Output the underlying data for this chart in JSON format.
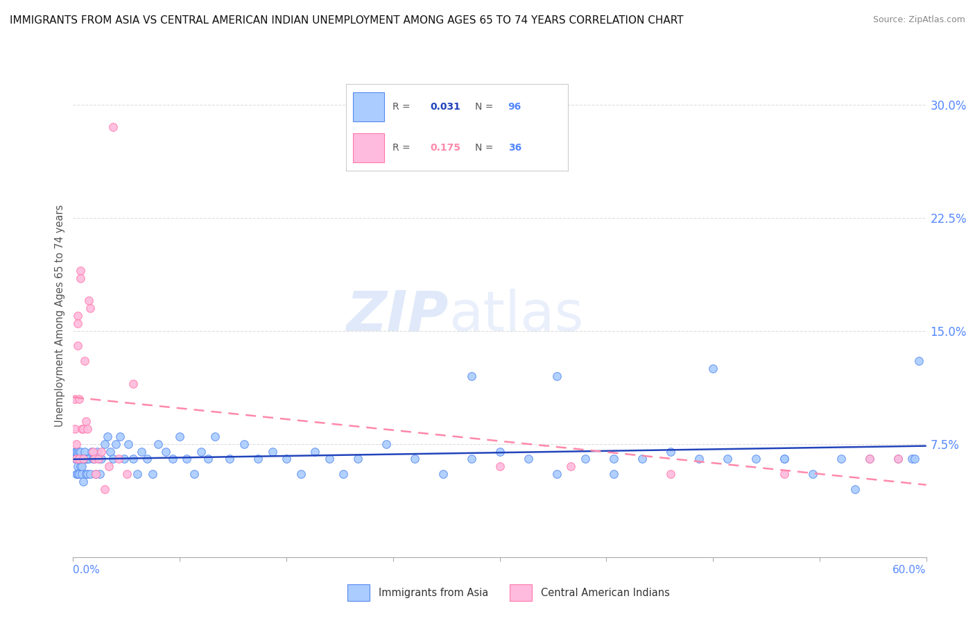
{
  "title": "IMMIGRANTS FROM ASIA VS CENTRAL AMERICAN INDIAN UNEMPLOYMENT AMONG AGES 65 TO 74 YEARS CORRELATION CHART",
  "source": "Source: ZipAtlas.com",
  "ylabel": "Unemployment Among Ages 65 to 74 years",
  "xlim": [
    0.0,
    0.6
  ],
  "ylim": [
    -0.01,
    0.32
  ],
  "plot_ylim": [
    0.0,
    0.32
  ],
  "yticks": [
    0.0,
    0.075,
    0.15,
    0.225,
    0.3
  ],
  "ytick_labels": [
    "",
    "7.5%",
    "15.0%",
    "22.5%",
    "30.0%"
  ],
  "right_axis_color": "#5588ff",
  "background_color": "#ffffff",
  "watermark_zip": "ZIP",
  "watermark_atlas": "atlas",
  "asia_color": "#aaccff",
  "asia_edge": "#5588ee",
  "cai_color": "#ffbbdd",
  "cai_edge": "#ff77aa",
  "asia_trend_color": "#2244bb",
  "cai_trend_color": "#ff88aa",
  "grid_color": "#dddddd",
  "axis_color": "#aaaaaa",
  "asia_x": [
    0.001,
    0.001,
    0.002,
    0.002,
    0.002,
    0.003,
    0.003,
    0.003,
    0.003,
    0.004,
    0.004,
    0.004,
    0.005,
    0.005,
    0.005,
    0.006,
    0.006,
    0.006,
    0.007,
    0.007,
    0.008,
    0.008,
    0.009,
    0.009,
    0.01,
    0.01,
    0.011,
    0.012,
    0.013,
    0.014,
    0.015,
    0.016,
    0.017,
    0.018,
    0.019,
    0.02,
    0.022,
    0.024,
    0.026,
    0.028,
    0.03,
    0.033,
    0.036,
    0.039,
    0.042,
    0.045,
    0.048,
    0.052,
    0.056,
    0.06,
    0.065,
    0.07,
    0.075,
    0.08,
    0.085,
    0.09,
    0.095,
    0.1,
    0.11,
    0.12,
    0.13,
    0.14,
    0.15,
    0.16,
    0.17,
    0.18,
    0.19,
    0.2,
    0.22,
    0.24,
    0.26,
    0.28,
    0.3,
    0.32,
    0.34,
    0.36,
    0.38,
    0.4,
    0.42,
    0.44,
    0.46,
    0.48,
    0.5,
    0.52,
    0.54,
    0.56,
    0.58,
    0.59,
    0.592,
    0.595,
    0.34,
    0.45,
    0.5,
    0.55,
    0.38,
    0.28
  ],
  "asia_y": [
    0.065,
    0.07,
    0.055,
    0.065,
    0.07,
    0.055,
    0.065,
    0.07,
    0.06,
    0.055,
    0.065,
    0.07,
    0.06,
    0.065,
    0.07,
    0.055,
    0.06,
    0.065,
    0.05,
    0.065,
    0.065,
    0.07,
    0.055,
    0.065,
    0.055,
    0.065,
    0.065,
    0.055,
    0.07,
    0.065,
    0.065,
    0.055,
    0.07,
    0.065,
    0.055,
    0.065,
    0.075,
    0.08,
    0.07,
    0.065,
    0.075,
    0.08,
    0.065,
    0.075,
    0.065,
    0.055,
    0.07,
    0.065,
    0.055,
    0.075,
    0.07,
    0.065,
    0.08,
    0.065,
    0.055,
    0.07,
    0.065,
    0.08,
    0.065,
    0.075,
    0.065,
    0.07,
    0.065,
    0.055,
    0.07,
    0.065,
    0.055,
    0.065,
    0.075,
    0.065,
    0.055,
    0.065,
    0.07,
    0.065,
    0.055,
    0.065,
    0.065,
    0.065,
    0.07,
    0.065,
    0.065,
    0.065,
    0.065,
    0.055,
    0.065,
    0.065,
    0.065,
    0.065,
    0.065,
    0.13,
    0.12,
    0.125,
    0.065,
    0.045,
    0.055,
    0.12
  ],
  "cai_x": [
    0.001,
    0.001,
    0.002,
    0.002,
    0.003,
    0.003,
    0.003,
    0.004,
    0.004,
    0.005,
    0.005,
    0.006,
    0.007,
    0.007,
    0.008,
    0.009,
    0.01,
    0.011,
    0.012,
    0.014,
    0.015,
    0.016,
    0.018,
    0.02,
    0.022,
    0.025,
    0.028,
    0.032,
    0.038,
    0.042,
    0.3,
    0.35,
    0.42,
    0.5,
    0.56,
    0.58
  ],
  "cai_y": [
    0.085,
    0.105,
    0.075,
    0.065,
    0.16,
    0.155,
    0.14,
    0.105,
    0.065,
    0.19,
    0.185,
    0.085,
    0.085,
    0.065,
    0.13,
    0.09,
    0.085,
    0.17,
    0.165,
    0.07,
    0.065,
    0.055,
    0.065,
    0.07,
    0.045,
    0.06,
    0.285,
    0.065,
    0.055,
    0.115,
    0.06,
    0.06,
    0.055,
    0.055,
    0.065,
    0.065
  ]
}
